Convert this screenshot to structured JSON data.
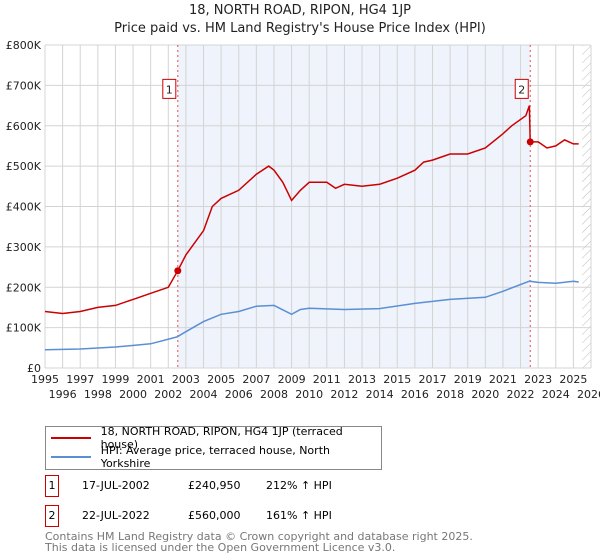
{
  "chart_data": {
    "type": "line",
    "title": "18, NORTH ROAD, RIPON, HG4 1JP",
    "subtitle": "Price paid vs. HM Land Registry's House Price Index (HPI)",
    "xlim": [
      1995,
      2026
    ],
    "ylim": [
      0,
      800000
    ],
    "x_ticks": [
      "1995",
      "1996",
      "1997",
      "1998",
      "1999",
      "2000",
      "2001",
      "2002",
      "2003",
      "2004",
      "2005",
      "2006",
      "2007",
      "2008",
      "2009",
      "2010",
      "2011",
      "2012",
      "2013",
      "2014",
      "2015",
      "2016",
      "2017",
      "2018",
      "2019",
      "2020",
      "2021",
      "2022",
      "2023",
      "2024",
      "2025",
      "2026"
    ],
    "y_ticks": [
      {
        "v": 0,
        "l": "£0"
      },
      {
        "v": 100000,
        "l": "£100K"
      },
      {
        "v": 200000,
        "l": "£200K"
      },
      {
        "v": 300000,
        "l": "£300K"
      },
      {
        "v": 400000,
        "l": "£400K"
      },
      {
        "v": 500000,
        "l": "£500K"
      },
      {
        "v": 600000,
        "l": "£600K"
      },
      {
        "v": 700000,
        "l": "£700K"
      },
      {
        "v": 800000,
        "l": "£800K"
      }
    ],
    "grid": true,
    "series": [
      {
        "name": "18, NORTH ROAD, RIPON, HG4 1JP (terraced house)",
        "color": "#cc0000",
        "x": [
          1995,
          1996,
          1997,
          1998,
          1999,
          2000,
          2001,
          2002,
          2002.54,
          2003,
          2004,
          2004.5,
          2005,
          2006,
          2007,
          2007.7,
          2008,
          2008.5,
          2009,
          2009.5,
          2010,
          2011,
          2011.5,
          2012,
          2013,
          2014,
          2015,
          2016,
          2016.5,
          2017,
          2018,
          2019,
          2020,
          2021,
          2021.5,
          2022.3,
          2022.5,
          2022.55,
          2023,
          2023.5,
          2024,
          2024.5,
          2025,
          2025.3
        ],
        "y": [
          140000,
          135000,
          140000,
          150000,
          155000,
          170000,
          185000,
          200000,
          240950,
          280000,
          340000,
          400000,
          420000,
          440000,
          480000,
          500000,
          490000,
          460000,
          415000,
          440000,
          460000,
          460000,
          445000,
          455000,
          450000,
          455000,
          470000,
          490000,
          510000,
          515000,
          530000,
          530000,
          545000,
          580000,
          600000,
          625000,
          650000,
          560000,
          560000,
          545000,
          550000,
          565000,
          555000,
          555000
        ]
      },
      {
        "name": "HPI: Average price, terraced house, North Yorkshire",
        "color": "#5b8fd4",
        "x": [
          1995,
          1997,
          1999,
          2001,
          2002.5,
          2003,
          2004,
          2005,
          2006,
          2007,
          2008,
          2009,
          2009.5,
          2010,
          2012,
          2014,
          2016,
          2018,
          2020,
          2021,
          2022.5,
          2023,
          2024,
          2025,
          2025.3
        ],
        "y": [
          45000,
          47000,
          52000,
          60000,
          77000,
          90000,
          115000,
          133000,
          140000,
          153000,
          155000,
          133000,
          145000,
          148000,
          145000,
          147000,
          160000,
          170000,
          175000,
          190000,
          215000,
          212000,
          210000,
          215000,
          213000
        ]
      }
    ],
    "annotations": [
      {
        "label": "1",
        "x": 2002.54,
        "y": 240950
      },
      {
        "label": "2",
        "x": 2022.55,
        "y": 560000
      }
    ],
    "shaded_range": [
      2002.54,
      2022.55
    ],
    "hatched_from": 2025.5,
    "legend": "below"
  },
  "transactions": [
    {
      "num": "1",
      "date": "17-JUL-2002",
      "price": "£240,950",
      "hpi": "212% ↑ HPI"
    },
    {
      "num": "2",
      "date": "22-JUL-2022",
      "price": "£560,000",
      "hpi": "161% ↑ HPI"
    }
  ],
  "footer": [
    "Contains HM Land Registry data © Crown copyright and database right 2025.",
    "This data is licensed under the Open Government Licence v3.0."
  ]
}
